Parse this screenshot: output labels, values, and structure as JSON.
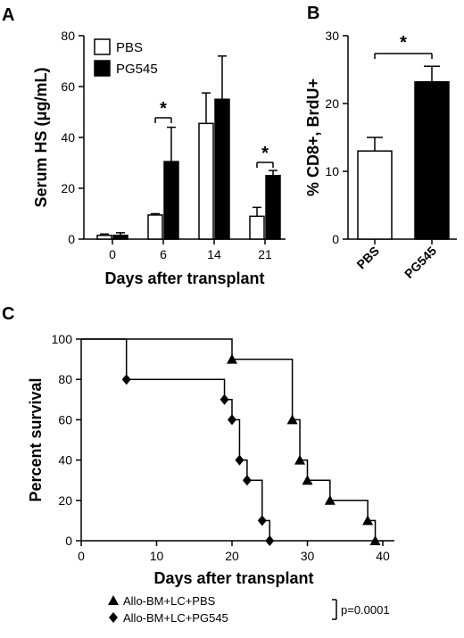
{
  "chart_data": [
    {
      "panel": "A",
      "type": "bar",
      "xlabel": "Days after transplant",
      "ylabel": "Serum HS (μg/mL)",
      "ylim": [
        0,
        80
      ],
      "yticks": [
        "0",
        "20",
        "40",
        "60",
        "80"
      ],
      "categories": [
        "0",
        "6",
        "14",
        "21"
      ],
      "series": [
        {
          "name": "PBS",
          "color": "#ffffff",
          "values": [
            1.5,
            9.5,
            45.5,
            9
          ],
          "errors": [
            0.5,
            0.5,
            12,
            3.5
          ]
        },
        {
          "name": "PG545",
          "color": "#000000",
          "values": [
            1.5,
            30.5,
            55,
            25
          ],
          "errors": [
            1,
            13.5,
            17,
            2
          ]
        }
      ],
      "significance": [
        {
          "category": "6",
          "label": "*"
        },
        {
          "category": "21",
          "label": "*"
        }
      ],
      "legend": "top-left"
    },
    {
      "panel": "B",
      "type": "bar",
      "ylabel": "% CD8+, BrdU+",
      "ylim": [
        0,
        30
      ],
      "yticks": [
        "0",
        "10",
        "20",
        "30"
      ],
      "categories": [
        "PBS",
        "PG545"
      ],
      "values": [
        13,
        23.2
      ],
      "errors": [
        2,
        2.3
      ],
      "colors": [
        "#ffffff",
        "#000000"
      ],
      "significance": [
        {
          "between": [
            "PBS",
            "PG545"
          ],
          "label": "*"
        }
      ]
    },
    {
      "panel": "C",
      "type": "line",
      "xlabel": "Days after transplant",
      "ylabel": "Percent survival",
      "xlim": [
        0,
        40
      ],
      "ylim": [
        0,
        100
      ],
      "xticks": [
        "0",
        "10",
        "20",
        "30",
        "40"
      ],
      "yticks": [
        "0",
        "20",
        "40",
        "60",
        "80",
        "100"
      ],
      "series": [
        {
          "name": "Allo-BM+LC+PBS",
          "marker": "triangle",
          "x": [
            0,
            20,
            28,
            29,
            30,
            33,
            38,
            39
          ],
          "y": [
            100,
            90,
            60,
            40,
            30,
            20,
            10,
            0
          ]
        },
        {
          "name": "Allo-BM+LC+PG545",
          "marker": "diamond",
          "x": [
            0,
            6,
            19,
            20,
            21,
            22,
            24,
            25
          ],
          "y": [
            100,
            80,
            70,
            60,
            40,
            30,
            10,
            0
          ]
        }
      ],
      "annotation": "p=0.0001",
      "legend": "bottom"
    }
  ]
}
